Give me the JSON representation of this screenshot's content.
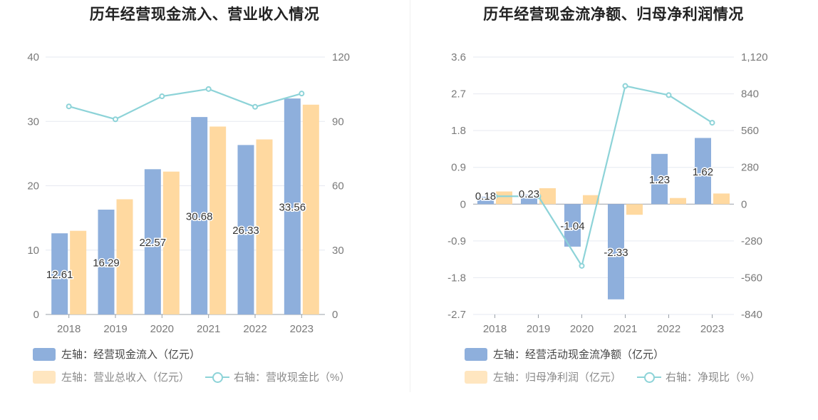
{
  "colors": {
    "bar_primary": "#8eafdc",
    "bar_secondary": "#ffd9a0",
    "line": "#8dd3d8",
    "grid": "#e6e9f0",
    "axis_text": "#7a7a7a"
  },
  "chart_data": [
    {
      "type": "bar",
      "title": "历年经营现金流入、营业收入情况",
      "categories": [
        "2018",
        "2019",
        "2020",
        "2021",
        "2022",
        "2023"
      ],
      "y_left": {
        "min": 0,
        "max": 40,
        "ticks": [
          "40",
          "30",
          "20",
          "10",
          "0"
        ]
      },
      "y_right": {
        "min": 0,
        "max": 120,
        "ticks": [
          "120",
          "90",
          "60",
          "30",
          "0"
        ]
      },
      "series": [
        {
          "name": "左轴：经营现金流入（亿元）",
          "kind": "bar",
          "axis": "left",
          "values": [
            12.61,
            16.29,
            22.57,
            30.68,
            26.33,
            33.56
          ],
          "labels": [
            "12.61",
            "16.29",
            "22.57",
            "30.68",
            "26.33",
            "33.56"
          ]
        },
        {
          "name": "左轴：营业总收入（亿元）",
          "kind": "bar",
          "axis": "left",
          "values": [
            13.0,
            17.9,
            22.2,
            29.2,
            27.2,
            32.6
          ]
        },
        {
          "name": "右轴：营收现金比（%）",
          "kind": "line",
          "axis": "right",
          "values": [
            97.0,
            91.0,
            101.7,
            105.1,
            96.8,
            103.0
          ]
        }
      ],
      "grid": true,
      "legend_position": "bottom-left"
    },
    {
      "type": "bar",
      "title": "历年经营现金流净额、归母净利润情况",
      "categories": [
        "2018",
        "2019",
        "2020",
        "2021",
        "2022",
        "2023"
      ],
      "y_left": {
        "min": -2.7,
        "max": 3.6,
        "ticks": [
          "3.6",
          "2.7",
          "1.8",
          "0.9",
          "0",
          "-0.9",
          "-1.8",
          "-2.7"
        ]
      },
      "y_right": {
        "min": -840,
        "max": 1120,
        "ticks": [
          "1,120",
          "840",
          "560",
          "280",
          "0",
          "-280",
          "-560",
          "-840"
        ]
      },
      "series": [
        {
          "name": "左轴：经营活动现金流净额（亿元）",
          "kind": "bar",
          "axis": "left",
          "values": [
            0.18,
            0.23,
            -1.04,
            -2.33,
            1.23,
            1.62
          ],
          "labels": [
            "0.18",
            "0.23",
            "-1.04",
            "-2.33",
            "1.23",
            "1.62"
          ]
        },
        {
          "name": "左轴：归母净利润（亿元）",
          "kind": "bar",
          "axis": "left",
          "values": [
            0.31,
            0.39,
            0.22,
            -0.26,
            0.15,
            0.26
          ]
        },
        {
          "name": "右轴：净现比（%）",
          "kind": "line",
          "axis": "right",
          "values": [
            60,
            60,
            -470,
            900,
            830,
            620
          ]
        }
      ],
      "grid": true,
      "legend_position": "bottom-left"
    }
  ]
}
